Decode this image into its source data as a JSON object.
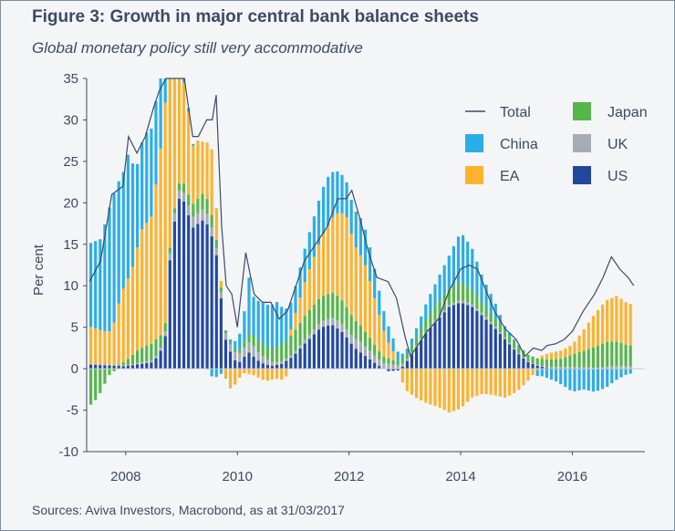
{
  "title": "Figure 3: Growth in major central bank balance sheets",
  "subtitle": "Global monetary policy still very accommodative",
  "source": "Sources: Aviva Investors, Macrobond, as at 31/03/2017",
  "colors": {
    "China": "#2aaee6",
    "EA": "#fbb32e",
    "US": "#22489e",
    "Japan": "#55b64b",
    "UK": "#a5acb4",
    "Total": "#3c4b64",
    "axis": "#3c4b64"
  },
  "chart_data": {
    "type": "bar",
    "ylabel": "Per cent",
    "ylim": [
      -10,
      35
    ],
    "yticks": [
      -10,
      -5,
      0,
      5,
      10,
      15,
      20,
      25,
      30,
      35
    ],
    "xlim": [
      2007.3,
      2017.3
    ],
    "xticks": [
      2008,
      2010,
      2012,
      2014,
      2016
    ],
    "legend": [
      {
        "name": "Total",
        "kind": "line"
      },
      {
        "name": "Japan",
        "kind": "box"
      },
      {
        "name": "China",
        "kind": "box"
      },
      {
        "name": "UK",
        "kind": "box"
      },
      {
        "name": "EA",
        "kind": "box"
      },
      {
        "name": "US",
        "kind": "box"
      }
    ],
    "series_keypoints": {
      "US": [
        [
          2007.35,
          0.5
        ],
        [
          2008.0,
          0.3
        ],
        [
          2008.5,
          0.8
        ],
        [
          2008.7,
          3.0
        ],
        [
          2008.8,
          14.0
        ],
        [
          2008.92,
          20.0
        ],
        [
          2009.0,
          21.0
        ],
        [
          2009.2,
          17.0
        ],
        [
          2009.4,
          18.0
        ],
        [
          2009.5,
          17.0
        ],
        [
          2009.62,
          14.0
        ],
        [
          2009.7,
          9.0
        ],
        [
          2009.8,
          3.0
        ],
        [
          2010.0,
          0.5
        ],
        [
          2010.2,
          2.0
        ],
        [
          2010.4,
          0.8
        ],
        [
          2010.6,
          0.3
        ],
        [
          2010.8,
          0.6
        ],
        [
          2011.0,
          1.5
        ],
        [
          2011.2,
          3.0
        ],
        [
          2011.5,
          5.0
        ],
        [
          2011.7,
          5.3
        ],
        [
          2011.9,
          4.3
        ],
        [
          2012.1,
          2.5
        ],
        [
          2012.3,
          1.5
        ],
        [
          2012.5,
          0.5
        ],
        [
          2012.7,
          -0.3
        ],
        [
          2012.9,
          -0.2
        ],
        [
          2013.05,
          1.0
        ],
        [
          2013.2,
          2.5
        ],
        [
          2013.4,
          4.5
        ],
        [
          2013.6,
          6.0
        ],
        [
          2013.8,
          7.5
        ],
        [
          2014.0,
          8.0
        ],
        [
          2014.2,
          7.5
        ],
        [
          2014.4,
          6.3
        ],
        [
          2014.6,
          5.0
        ],
        [
          2014.8,
          3.5
        ],
        [
          2015.0,
          2.0
        ],
        [
          2015.2,
          0.8
        ],
        [
          2015.4,
          0.3
        ],
        [
          2015.6,
          0.1
        ],
        [
          2015.8,
          0.1
        ],
        [
          2016.0,
          0.1
        ],
        [
          2016.5,
          0.0
        ],
        [
          2017.1,
          0.0
        ]
      ],
      "EA": [
        [
          2007.35,
          4.5
        ],
        [
          2007.6,
          4.0
        ],
        [
          2007.75,
          4.0
        ],
        [
          2007.9,
          8.0
        ],
        [
          2008.0,
          9.5
        ],
        [
          2008.1,
          10.0
        ],
        [
          2008.3,
          14.5
        ],
        [
          2008.45,
          15.0
        ],
        [
          2008.6,
          21.0
        ],
        [
          2008.7,
          27.0
        ],
        [
          2008.8,
          22.0
        ],
        [
          2008.95,
          14.0
        ],
        [
          2009.1,
          11.0
        ],
        [
          2009.2,
          7.0
        ],
        [
          2009.3,
          7.0
        ],
        [
          2009.4,
          6.0
        ],
        [
          2009.55,
          8.0
        ],
        [
          2009.62,
          4.0
        ],
        [
          2009.7,
          1.0
        ],
        [
          2009.85,
          -2.5
        ],
        [
          2009.95,
          -2.0
        ],
        [
          2010.1,
          -0.5
        ],
        [
          2010.3,
          -0.8
        ],
        [
          2010.5,
          -1.5
        ],
        [
          2010.7,
          -1.2
        ],
        [
          2010.85,
          -1.4
        ],
        [
          2011.0,
          1.5
        ],
        [
          2011.2,
          4.0
        ],
        [
          2011.4,
          6.0
        ],
        [
          2011.6,
          8.0
        ],
        [
          2011.8,
          10.0
        ],
        [
          2011.95,
          11.0
        ],
        [
          2012.1,
          9.0
        ],
        [
          2012.3,
          8.0
        ],
        [
          2012.5,
          5.0
        ],
        [
          2012.7,
          2.0
        ],
        [
          2012.85,
          0.5
        ],
        [
          2013.0,
          -2.5
        ],
        [
          2013.2,
          -3.5
        ],
        [
          2013.4,
          -4.2
        ],
        [
          2013.6,
          -4.6
        ],
        [
          2013.8,
          -5.3
        ],
        [
          2014.0,
          -4.8
        ],
        [
          2014.2,
          -3.5
        ],
        [
          2014.4,
          -3.0
        ],
        [
          2014.6,
          -3.2
        ],
        [
          2014.8,
          -3.5
        ],
        [
          2015.0,
          -2.8
        ],
        [
          2015.2,
          -1.5
        ],
        [
          2015.35,
          -0.3
        ],
        [
          2015.45,
          0.4
        ],
        [
          2015.6,
          0.8
        ],
        [
          2015.8,
          1.0
        ],
        [
          2016.0,
          1.2
        ],
        [
          2016.2,
          2.5
        ],
        [
          2016.4,
          4.0
        ],
        [
          2016.6,
          5.0
        ],
        [
          2016.8,
          5.5
        ],
        [
          2017.0,
          5.0
        ],
        [
          2017.1,
          5.0
        ]
      ],
      "Japan": [
        [
          2007.35,
          -4.5
        ],
        [
          2007.5,
          -3.5
        ],
        [
          2007.7,
          -0.8
        ],
        [
          2007.85,
          0.0
        ],
        [
          2008.0,
          0.5
        ],
        [
          2008.2,
          1.5
        ],
        [
          2008.4,
          2.0
        ],
        [
          2008.55,
          2.0
        ],
        [
          2008.7,
          1.0
        ],
        [
          2008.85,
          0.5
        ],
        [
          2009.0,
          1.0
        ],
        [
          2009.2,
          1.5
        ],
        [
          2009.4,
          2.0
        ],
        [
          2009.55,
          1.5
        ],
        [
          2009.7,
          0.5
        ],
        [
          2009.85,
          0.2
        ],
        [
          2010.0,
          0.3
        ],
        [
          2010.2,
          1.0
        ],
        [
          2010.4,
          1.5
        ],
        [
          2010.6,
          1.5
        ],
        [
          2010.8,
          2.0
        ],
        [
          2011.0,
          2.5
        ],
        [
          2011.3,
          3.0
        ],
        [
          2011.6,
          3.0
        ],
        [
          2011.8,
          3.0
        ],
        [
          2012.0,
          2.5
        ],
        [
          2012.2,
          2.0
        ],
        [
          2012.4,
          1.5
        ],
        [
          2012.6,
          0.8
        ],
        [
          2012.8,
          0.5
        ],
        [
          2013.0,
          0.5
        ],
        [
          2013.2,
          1.0
        ],
        [
          2013.4,
          1.5
        ],
        [
          2013.6,
          1.8
        ],
        [
          2013.8,
          2.0
        ],
        [
          2014.0,
          2.2
        ],
        [
          2014.2,
          1.8
        ],
        [
          2014.4,
          1.3
        ],
        [
          2014.6,
          1.0
        ],
        [
          2014.8,
          0.8
        ],
        [
          2015.0,
          0.8
        ],
        [
          2015.2,
          0.8
        ],
        [
          2015.4,
          0.8
        ],
        [
          2015.6,
          0.9
        ],
        [
          2015.8,
          1.0
        ],
        [
          2016.0,
          1.5
        ],
        [
          2016.2,
          2.0
        ],
        [
          2016.4,
          2.5
        ],
        [
          2016.6,
          3.0
        ],
        [
          2016.8,
          3.0
        ],
        [
          2017.0,
          2.5
        ],
        [
          2017.1,
          2.5
        ]
      ],
      "UK": [
        [
          2007.35,
          0.1
        ],
        [
          2008.0,
          0.1
        ],
        [
          2008.6,
          0.3
        ],
        [
          2008.85,
          1.0
        ],
        [
          2009.0,
          1.0
        ],
        [
          2009.2,
          1.3
        ],
        [
          2009.45,
          1.3
        ],
        [
          2009.65,
          0.8
        ],
        [
          2009.8,
          0.8
        ],
        [
          2010.0,
          1.0
        ],
        [
          2010.3,
          1.3
        ],
        [
          2010.6,
          0.5
        ],
        [
          2010.8,
          0.3
        ],
        [
          2011.0,
          0.3
        ],
        [
          2011.3,
          0.5
        ],
        [
          2011.6,
          0.8
        ],
        [
          2011.8,
          1.0
        ],
        [
          2012.0,
          1.0
        ],
        [
          2012.2,
          1.3
        ],
        [
          2012.5,
          0.8
        ],
        [
          2012.8,
          0.5
        ],
        [
          2013.0,
          0.3
        ],
        [
          2013.3,
          0.2
        ],
        [
          2013.6,
          0.2
        ],
        [
          2014.0,
          0.3
        ],
        [
          2014.4,
          0.3
        ],
        [
          2014.8,
          0.2
        ],
        [
          2015.2,
          0.1
        ],
        [
          2015.6,
          0.1
        ],
        [
          2016.0,
          0.1
        ],
        [
          2016.4,
          0.1
        ],
        [
          2016.6,
          0.2
        ],
        [
          2016.8,
          0.3
        ],
        [
          2017.0,
          0.3
        ],
        [
          2017.1,
          0.3
        ]
      ],
      "China": [
        [
          2007.35,
          10.0
        ],
        [
          2007.55,
          11.0
        ],
        [
          2007.75,
          16.0
        ],
        [
          2007.95,
          14.0
        ],
        [
          2008.05,
          15.0
        ],
        [
          2008.2,
          10.0
        ],
        [
          2008.4,
          11.0
        ],
        [
          2008.55,
          10.0
        ],
        [
          2008.7,
          12.0
        ],
        [
          2008.8,
          5.0
        ],
        [
          2008.95,
          2.0
        ],
        [
          2009.1,
          0.5
        ],
        [
          2009.3,
          0.0
        ],
        [
          2009.45,
          0.0
        ],
        [
          2009.55,
          -1.0
        ],
        [
          2009.65,
          -1.0
        ],
        [
          2009.8,
          0.0
        ],
        [
          2009.9,
          0.5
        ],
        [
          2010.0,
          1.5
        ],
        [
          2010.1,
          2.5
        ],
        [
          2010.2,
          7.0
        ],
        [
          2010.3,
          4.5
        ],
        [
          2010.5,
          5.0
        ],
        [
          2010.7,
          5.5
        ],
        [
          2010.85,
          4.0
        ],
        [
          2011.0,
          3.0
        ],
        [
          2011.2,
          4.0
        ],
        [
          2011.4,
          5.0
        ],
        [
          2011.6,
          6.0
        ],
        [
          2011.8,
          5.0
        ],
        [
          2012.0,
          4.0
        ],
        [
          2012.2,
          4.5
        ],
        [
          2012.4,
          4.0
        ],
        [
          2012.6,
          2.5
        ],
        [
          2012.8,
          1.5
        ],
        [
          2013.0,
          0.5
        ],
        [
          2013.2,
          1.0
        ],
        [
          2013.4,
          2.0
        ],
        [
          2013.6,
          3.0
        ],
        [
          2013.8,
          4.0
        ],
        [
          2014.0,
          6.0
        ],
        [
          2014.2,
          5.0
        ],
        [
          2014.4,
          3.0
        ],
        [
          2014.6,
          2.0
        ],
        [
          2014.8,
          0.5
        ],
        [
          2015.0,
          0.2
        ],
        [
          2015.2,
          0.0
        ],
        [
          2015.3,
          0.0
        ],
        [
          2015.35,
          -0.7
        ],
        [
          2015.5,
          -1.0
        ],
        [
          2015.7,
          -1.5
        ],
        [
          2015.9,
          -2.3
        ],
        [
          2016.0,
          -2.8
        ],
        [
          2016.2,
          -2.5
        ],
        [
          2016.4,
          -2.8
        ],
        [
          2016.6,
          -2.3
        ],
        [
          2016.8,
          -1.3
        ],
        [
          2017.0,
          -0.6
        ],
        [
          2017.1,
          -0.6
        ]
      ]
    },
    "total_keypoints": [
      [
        2007.35,
        10.5
      ],
      [
        2007.55,
        13.0
      ],
      [
        2007.75,
        21.0
      ],
      [
        2007.95,
        22.0
      ],
      [
        2008.05,
        28.0
      ],
      [
        2008.2,
        26.0
      ],
      [
        2008.35,
        28.0
      ],
      [
        2008.5,
        31.5
      ],
      [
        2008.6,
        33.5
      ],
      [
        2008.72,
        37.0
      ],
      [
        2008.85,
        35.0
      ],
      [
        2008.95,
        37.0
      ],
      [
        2009.05,
        36.0
      ],
      [
        2009.2,
        28.0
      ],
      [
        2009.3,
        28.0
      ],
      [
        2009.45,
        30.0
      ],
      [
        2009.55,
        30.0
      ],
      [
        2009.62,
        33.0
      ],
      [
        2009.72,
        17.0
      ],
      [
        2009.8,
        10.0
      ],
      [
        2009.9,
        9.0
      ],
      [
        2010.0,
        5.0
      ],
      [
        2010.15,
        14.0
      ],
      [
        2010.3,
        9.0
      ],
      [
        2010.45,
        8.0
      ],
      [
        2010.6,
        8.0
      ],
      [
        2010.75,
        6.0
      ],
      [
        2010.9,
        7.0
      ],
      [
        2011.0,
        9.0
      ],
      [
        2011.2,
        13.0
      ],
      [
        2011.4,
        15.0
      ],
      [
        2011.6,
        17.0
      ],
      [
        2011.8,
        20.5
      ],
      [
        2011.95,
        20.5
      ],
      [
        2012.05,
        21.5
      ],
      [
        2012.2,
        18.0
      ],
      [
        2012.35,
        14.0
      ],
      [
        2012.5,
        11.0
      ],
      [
        2012.7,
        10.5
      ],
      [
        2012.85,
        8.5
      ],
      [
        2013.0,
        4.0
      ],
      [
        2013.1,
        1.5
      ],
      [
        2013.2,
        2.5
      ],
      [
        2013.4,
        4.5
      ],
      [
        2013.6,
        6.0
      ],
      [
        2013.8,
        9.5
      ],
      [
        2014.0,
        12.0
      ],
      [
        2014.15,
        12.5
      ],
      [
        2014.3,
        12.0
      ],
      [
        2014.45,
        9.5
      ],
      [
        2014.6,
        7.0
      ],
      [
        2014.8,
        4.8
      ],
      [
        2015.0,
        3.5
      ],
      [
        2015.15,
        1.5
      ],
      [
        2015.3,
        2.5
      ],
      [
        2015.45,
        2.2
      ],
      [
        2015.55,
        2.8
      ],
      [
        2015.7,
        3.0
      ],
      [
        2015.85,
        3.5
      ],
      [
        2016.0,
        4.5
      ],
      [
        2016.2,
        7.0
      ],
      [
        2016.4,
        9.0
      ],
      [
        2016.55,
        11.0
      ],
      [
        2016.7,
        13.5
      ],
      [
        2016.85,
        12.0
      ],
      [
        2017.0,
        11.0
      ],
      [
        2017.1,
        10.0
      ]
    ]
  }
}
